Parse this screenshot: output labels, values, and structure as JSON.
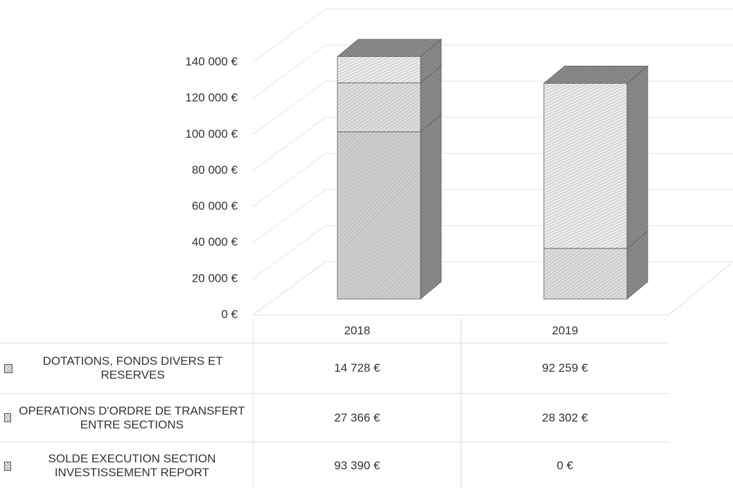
{
  "chart_data": {
    "type": "bar3d_stacked",
    "categories": [
      "2018",
      "2019"
    ],
    "series": [
      {
        "name": "SOLDE EXECUTION SECTION INVESTISSEMENT REPORT",
        "color": "#cfcfcf",
        "values": [
          93390,
          0
        ],
        "value_labels": [
          "93 390 €",
          "0 €"
        ]
      },
      {
        "name": "OPERATIONS D'ORDRE DE TRANSFERT ENTRE SECTIONS",
        "color": "#dedede",
        "values": [
          27366,
          28302
        ],
        "value_labels": [
          "27 366 €",
          "28 302 €"
        ]
      },
      {
        "name": "DOTATIONS, FONDS DIVERS ET RESERVES",
        "color": "#ececec",
        "values": [
          14728,
          92259
        ],
        "value_labels": [
          "14 728 €",
          "92 259 €"
        ]
      }
    ],
    "ylim": [
      0,
      140000
    ],
    "yticks": [
      {
        "value": 0,
        "label": "0 €"
      },
      {
        "value": 20000,
        "label": "20 000 €"
      },
      {
        "value": 40000,
        "label": "40 000 €"
      },
      {
        "value": 60000,
        "label": "60 000 €"
      },
      {
        "value": 80000,
        "label": "80 000 €"
      },
      {
        "value": 100000,
        "label": "100 000 €"
      },
      {
        "value": 120000,
        "label": "120 000 €"
      },
      {
        "value": 140000,
        "label": "140 000 €"
      }
    ],
    "grid": true
  }
}
